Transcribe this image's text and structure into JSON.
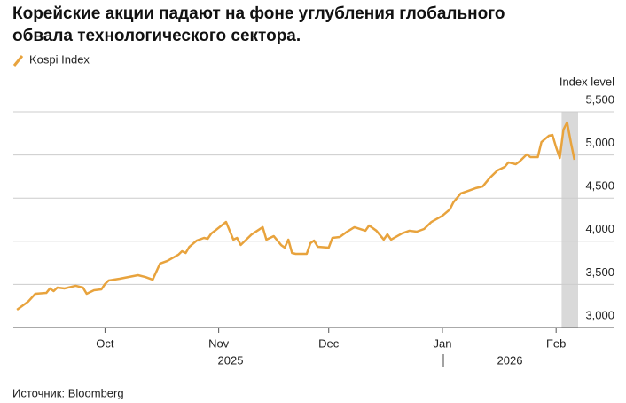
{
  "chart_data": {
    "type": "line",
    "title_lines": [
      "Корейские акции падают на фоне углубления глобального",
      "обвала технологического сектора."
    ],
    "y_axis_label": "Index level",
    "source": "Источник: Bloomberg",
    "years": [
      "2025",
      "2026"
    ],
    "xlim": [
      -25,
      129
    ],
    "xticks": [
      {
        "value": 0,
        "label": "Oct"
      },
      {
        "value": 31,
        "label": "Nov"
      },
      {
        "value": 61,
        "label": "Dec"
      },
      {
        "value": 92,
        "label": "Jan"
      },
      {
        "value": 123,
        "label": "Feb"
      }
    ],
    "ylim": [
      3000,
      5500
    ],
    "yticks": [
      {
        "value": 3000,
        "label": "3,000"
      },
      {
        "value": 3500,
        "label": "3,500"
      },
      {
        "value": 4000,
        "label": "4,000"
      },
      {
        "value": 4500,
        "label": "4,500"
      },
      {
        "value": 5000,
        "label": "5,000"
      },
      {
        "value": 5500,
        "label": "5,500"
      }
    ],
    "grid": true,
    "highlight": [
      124.5,
      129
    ],
    "x": [
      -24,
      -21,
      -19,
      -16,
      -15,
      -14,
      -13,
      -11,
      -8,
      -6,
      -5,
      -3,
      -1,
      0,
      1,
      4,
      9,
      11,
      13,
      15,
      17,
      20,
      21,
      22,
      23,
      25,
      27,
      28,
      29,
      30,
      33,
      35,
      36,
      37,
      40,
      43,
      44,
      46,
      48,
      49,
      50,
      51,
      52,
      55,
      56,
      57,
      58,
      61,
      62,
      64,
      66,
      68,
      71,
      72,
      74,
      76,
      77,
      78,
      81,
      83,
      85,
      87,
      89,
      92,
      94,
      95,
      97,
      99,
      101,
      103,
      105,
      107,
      109,
      110,
      112,
      113,
      115,
      116,
      118,
      119,
      121,
      122,
      123,
      124,
      125,
      126,
      127,
      128
    ],
    "series": [
      {
        "name": "Kospi Index",
        "color": "#e8a33d",
        "values": [
          3206,
          3298,
          3391,
          3401,
          3453,
          3422,
          3463,
          3453,
          3484,
          3463,
          3391,
          3432,
          3442,
          3504,
          3545,
          3566,
          3607,
          3586,
          3555,
          3741,
          3772,
          3844,
          3885,
          3864,
          3936,
          4008,
          4039,
          4029,
          4091,
          4122,
          4224,
          4019,
          4039,
          3957,
          4080,
          4163,
          4019,
          4060,
          3957,
          3926,
          4019,
          3864,
          3854,
          3854,
          3977,
          4008,
          3936,
          3926,
          4039,
          4049,
          4111,
          4163,
          4122,
          4183,
          4122,
          4019,
          4080,
          4019,
          4091,
          4122,
          4111,
          4142,
          4224,
          4296,
          4368,
          4451,
          4554,
          4584,
          4615,
          4636,
          4739,
          4821,
          4862,
          4914,
          4893,
          4924,
          5006,
          4975,
          4975,
          5150,
          5222,
          5232,
          5089,
          4965,
          5294,
          5377,
          5150,
          4944
        ]
      }
    ]
  }
}
